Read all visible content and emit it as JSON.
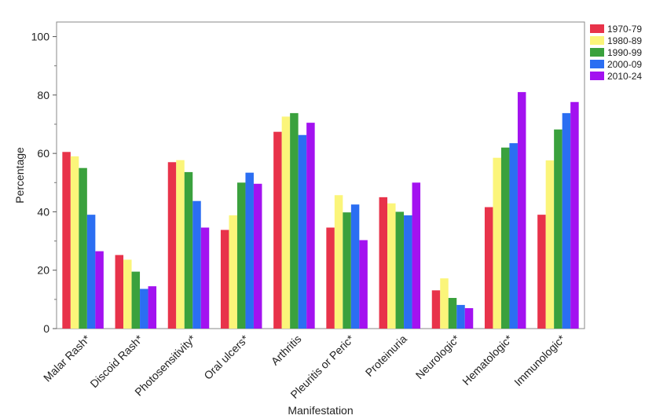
{
  "chart_data": {
    "type": "bar",
    "title": "",
    "xlabel": "Manifestation",
    "ylabel": "Percentage",
    "ylim": [
      0,
      105
    ],
    "yticks": [
      0,
      20,
      40,
      60,
      80,
      100
    ],
    "grid": false,
    "legend_position": "right",
    "categories": [
      "Malar Rash*",
      "Discoid Rash*",
      "Photosensitivity*",
      "Oral ulcers*",
      "Arthritis",
      "Pleuritis or Peric*",
      "Proteinuria",
      "Neurologic*",
      "Hematologic*",
      "Immunologic*"
    ],
    "series": [
      {
        "name": "1970-79",
        "color": "#e8334a",
        "values": [
          60.5,
          25.2,
          57.0,
          33.8,
          67.4,
          34.6,
          45.0,
          13.1,
          41.6,
          39.0
        ]
      },
      {
        "name": "1980-89",
        "color": "#fbf57a",
        "values": [
          59.0,
          23.6,
          57.7,
          38.8,
          72.6,
          45.7,
          42.9,
          17.2,
          58.5,
          57.6
        ]
      },
      {
        "name": "1990-99",
        "color": "#3aa13d",
        "values": [
          55.0,
          19.5,
          53.6,
          50.0,
          73.8,
          39.8,
          40.0,
          10.5,
          62.0,
          68.2
        ]
      },
      {
        "name": "2000-09",
        "color": "#2b6ef2",
        "values": [
          39.0,
          13.6,
          43.7,
          53.4,
          66.3,
          42.5,
          38.8,
          8.1,
          63.5,
          73.8
        ]
      },
      {
        "name": "2010-24",
        "color": "#a312f0",
        "values": [
          26.5,
          14.5,
          34.6,
          49.6,
          70.5,
          30.3,
          50.0,
          7.0,
          81.0,
          77.6
        ]
      }
    ]
  }
}
